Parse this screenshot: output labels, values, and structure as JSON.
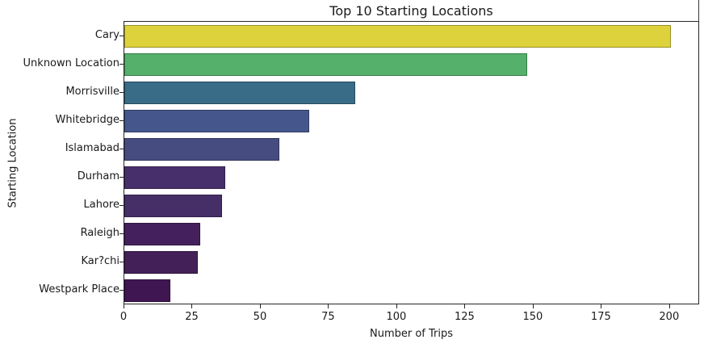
{
  "chart_data": {
    "type": "bar",
    "orientation": "horizontal",
    "title": "Top 10 Starting Locations",
    "xlabel": "Number of Trips",
    "ylabel": "Starting Location",
    "categories": [
      "Cary",
      "Unknown Location",
      "Morrisville",
      "Whitebridge",
      "Islamabad",
      "Durham",
      "Lahore",
      "Raleigh",
      "Kar?chi",
      "Westpark Place"
    ],
    "values": [
      201,
      148,
      85,
      68,
      57,
      37,
      36,
      28,
      27,
      17
    ],
    "bar_colors": [
      "#ddd23b",
      "#54b06a",
      "#396c87",
      "#45568c",
      "#474c80",
      "#472f6b",
      "#462e67",
      "#44215c",
      "#432058",
      "#3f1652"
    ],
    "palette": "viridis",
    "xlim": [
      0,
      211
    ],
    "xticks": [
      0,
      25,
      50,
      75,
      100,
      125,
      150,
      175,
      200
    ],
    "grid": false,
    "legend": "none"
  }
}
